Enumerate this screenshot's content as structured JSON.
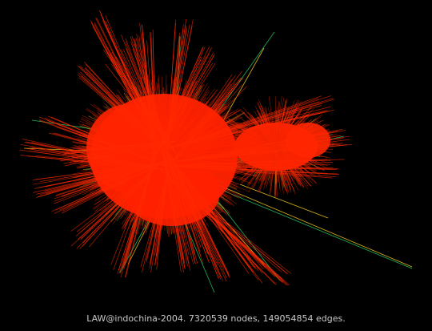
{
  "caption": "LAW@indochina-2004. 7320539 nodes, 149054854 edges.",
  "colors": {
    "background": "#000000",
    "edge_primary": "#ff2a00",
    "edge_secondary": "#ffd21a",
    "edge_tertiary": "#22d16a",
    "caption_text": "#c8c8c8"
  }
}
